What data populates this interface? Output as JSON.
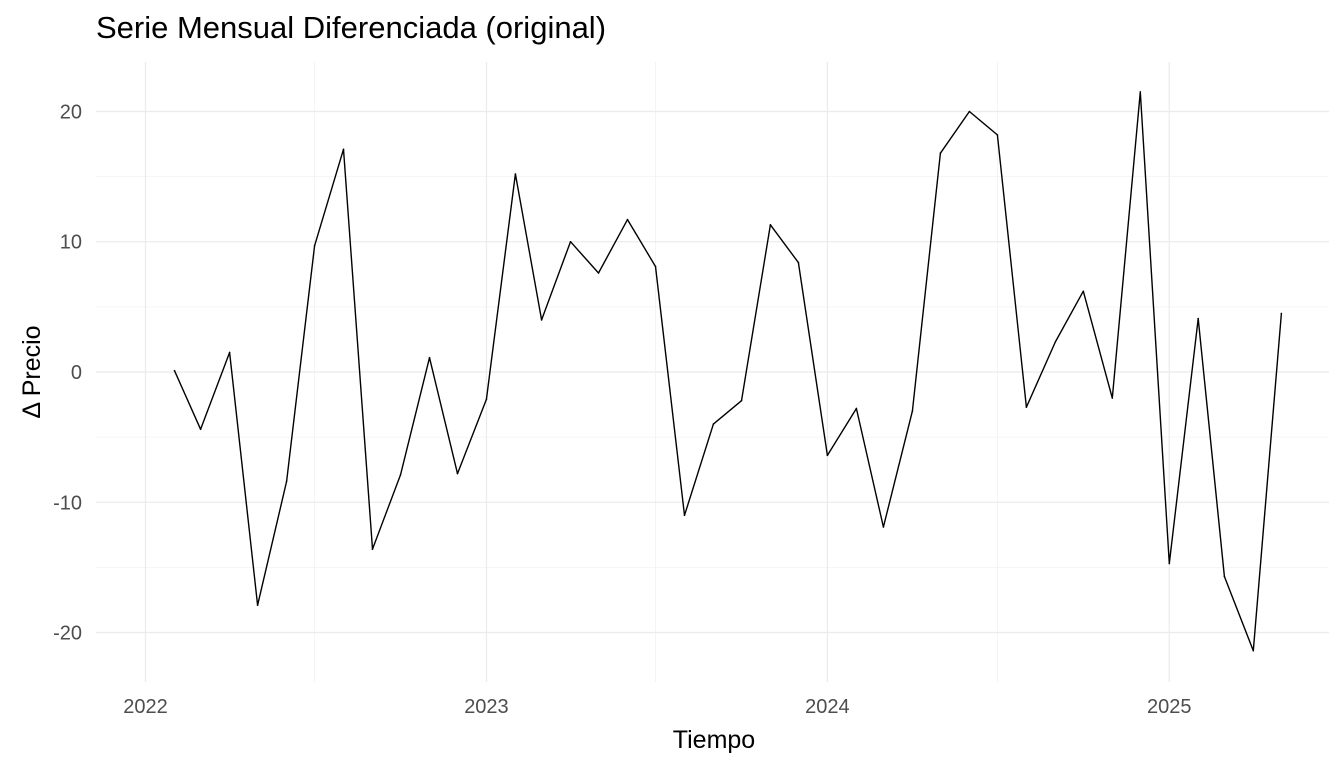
{
  "chart_data": {
    "type": "line",
    "title": "Serie Mensual Diferenciada (original)",
    "xlabel": "Tiempo",
    "ylabel": "Δ Precio",
    "x_ticks": [
      "2022",
      "2023",
      "2024",
      "2025"
    ],
    "y_ticks": [
      -20,
      -10,
      0,
      10,
      20
    ],
    "ylim": [
      -23.8,
      23.8
    ],
    "xlim": [
      "2021-11-09",
      "2025-06-21"
    ],
    "grid": true,
    "line_color": "#000000",
    "series": [
      {
        "x": [
          "2022-02-01",
          "2022-03-01",
          "2022-04-01",
          "2022-05-01",
          "2022-06-01",
          "2022-07-01",
          "2022-08-01",
          "2022-09-01",
          "2022-10-01",
          "2022-11-01",
          "2022-12-01",
          "2023-01-01",
          "2023-02-01",
          "2023-03-01",
          "2023-04-01",
          "2023-05-01",
          "2023-06-01",
          "2023-07-01",
          "2023-08-01",
          "2023-09-01",
          "2023-10-01",
          "2023-11-01",
          "2023-12-01",
          "2024-01-01",
          "2024-02-01",
          "2024-03-01",
          "2024-04-01",
          "2024-05-01",
          "2024-06-01",
          "2024-07-01",
          "2024-08-01",
          "2024-09-01",
          "2024-10-01",
          "2024-11-01",
          "2024-12-01",
          "2025-01-01",
          "2025-02-01",
          "2025-03-01",
          "2025-04-01",
          "2025-05-01"
        ],
        "values": [
          0.1,
          -4.4,
          1.5,
          -17.9,
          -8.4,
          9.7,
          17.1,
          -13.6,
          -7.9,
          1.1,
          -7.8,
          -2.1,
          15.2,
          4.0,
          10.0,
          7.6,
          11.7,
          8.1,
          -11.0,
          -4.0,
          -2.2,
          11.3,
          8.4,
          -6.4,
          -2.8,
          -11.9,
          -3.0,
          16.8,
          20.0,
          18.2,
          -2.7,
          2.3,
          6.2,
          -2.0,
          21.5,
          -14.7,
          4.1,
          -15.7,
          -21.4,
          4.5
        ]
      }
    ]
  }
}
